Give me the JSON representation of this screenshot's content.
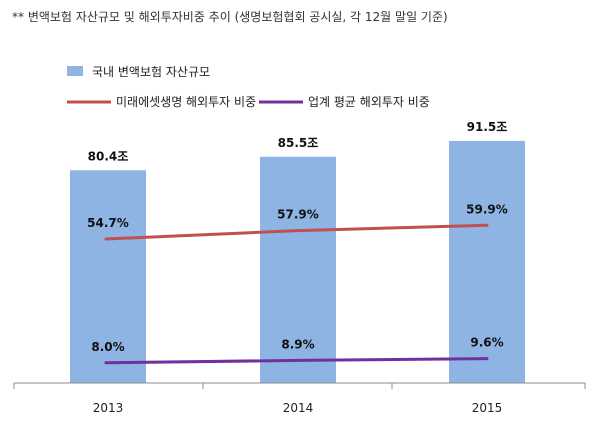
{
  "note": "** 변액보험 자산규모 및 해외투자비중 추이 (생명보험협회 공시실, 각 12월 말일 기준)",
  "chart_data": {
    "type": "bar+line",
    "categories": [
      "2013",
      "2014",
      "2015"
    ],
    "bars": {
      "name": "국내 변액보험 자산규모",
      "values": [
        80.4,
        85.5,
        91.5
      ],
      "labels": [
        "80.4조",
        "85.5조",
        "91.5조"
      ],
      "color": "#8EB4E3"
    },
    "lines": [
      {
        "name": "미래에셋생명 해외투자 비중",
        "values": [
          54.7,
          57.9,
          59.9
        ],
        "labels": [
          "54.7%",
          "57.9%",
          "59.9%"
        ],
        "color": "#C0504D"
      },
      {
        "name": "업계 평균 해외투자 비중",
        "values": [
          8.0,
          8.9,
          9.6
        ],
        "labels": [
          "8.0%",
          "8.9%",
          "9.6%"
        ],
        "color": "#7030A0"
      }
    ],
    "legend_position": "top-left",
    "grid": false
  }
}
